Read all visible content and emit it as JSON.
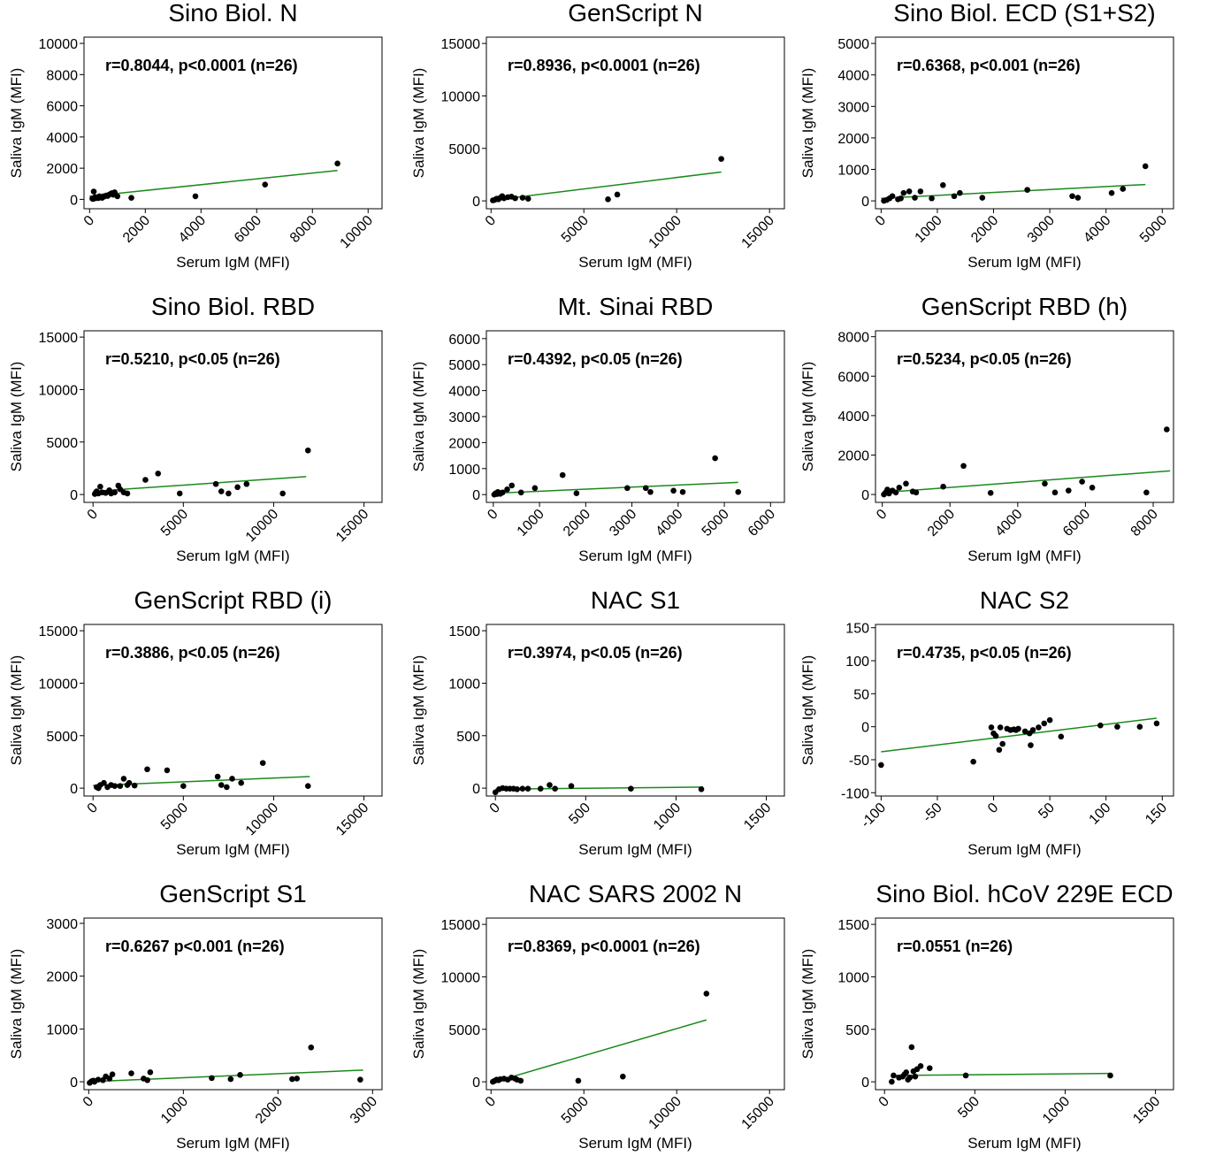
{
  "chart_data": [
    {
      "type": "scatter",
      "title": "Sino Biol. N",
      "annotation": "r=0.8044, p<0.0001 (n=26)",
      "x_label": "Serum IgM (MFI)",
      "y_label": "Saliva IgM (MFI)",
      "xlim": [
        -200,
        10500
      ],
      "xticks": [
        0,
        2000,
        4000,
        6000,
        8000,
        10000
      ],
      "ylim": [
        -600,
        10400
      ],
      "yticks": [
        0,
        2000,
        4000,
        6000,
        8000,
        10000
      ],
      "color": "#000000",
      "x": [
        100,
        150,
        200,
        250,
        300,
        350,
        400,
        450,
        500,
        600,
        700,
        800,
        900,
        1000,
        1500,
        3800,
        6300,
        8900,
        120,
        180,
        220,
        320,
        520,
        650,
        750,
        850
      ],
      "values": [
        50,
        500,
        150,
        100,
        80,
        200,
        150,
        100,
        200,
        250,
        300,
        400,
        450,
        200,
        100,
        200,
        950,
        2300,
        30,
        60,
        120,
        90,
        180,
        220,
        350,
        300
      ],
      "fit": {
        "color": "#1a8a1a",
        "x": [
          0,
          8900
        ],
        "values": [
          200,
          1850
        ]
      }
    },
    {
      "type": "scatter",
      "title": "GenScript N",
      "annotation": "r=0.8936, p<0.0001 (n=26)",
      "x_label": "Serum IgM (MFI)",
      "y_label": "Saliva IgM (MFI)",
      "xlim": [
        -250,
        15800
      ],
      "xticks": [
        0,
        5000,
        10000,
        15000
      ],
      "ylim": [
        -750,
        15600
      ],
      "yticks": [
        0,
        5000,
        10000,
        15000
      ],
      "color": "#000000",
      "x": [
        100,
        200,
        300,
        400,
        500,
        600,
        700,
        900,
        1100,
        1300,
        1700,
        2000,
        6300,
        6800,
        12400
      ],
      "values": [
        50,
        100,
        200,
        150,
        300,
        450,
        250,
        350,
        400,
        250,
        300,
        200,
        150,
        600,
        4000
      ],
      "fit": {
        "color": "#1a8a1a",
        "x": [
          0,
          12400
        ],
        "values": [
          50,
          2750
        ]
      }
    },
    {
      "type": "scatter",
      "title": "Sino Biol. ECD (S1+S2)",
      "annotation": "r=0.6368, p<0.001 (n=26)",
      "x_label": "Serum IgM (MFI)",
      "y_label": "Saliva IgM (MFI)",
      "xlim": [
        -100,
        5200
      ],
      "xticks": [
        0,
        1000,
        2000,
        3000,
        4000,
        5000
      ],
      "ylim": [
        -250,
        5200
      ],
      "yticks": [
        0,
        1000,
        2000,
        3000,
        4000,
        5000
      ],
      "color": "#000000",
      "x": [
        50,
        100,
        150,
        200,
        300,
        350,
        400,
        500,
        600,
        700,
        900,
        1100,
        1300,
        1400,
        1800,
        2600,
        3400,
        3500,
        4100,
        4300,
        4700
      ],
      "values": [
        0,
        30,
        80,
        150,
        50,
        80,
        250,
        300,
        100,
        300,
        80,
        500,
        150,
        250,
        100,
        350,
        150,
        100,
        250,
        380,
        1100
      ],
      "fit": {
        "color": "#1a8a1a",
        "x": [
          0,
          4700
        ],
        "values": [
          80,
          520
        ]
      }
    },
    {
      "type": "scatter",
      "title": "Sino Biol. RBD",
      "annotation": "r=0.5210, p<0.05 (n=26)",
      "x_label": "Serum IgM (MFI)",
      "y_label": "Saliva IgM (MFI)",
      "xlim": [
        -500,
        16000
      ],
      "xticks": [
        0,
        5000,
        10000,
        15000
      ],
      "ylim": [
        -750,
        15600
      ],
      "yticks": [
        0,
        5000,
        10000,
        15000
      ],
      "color": "#000000",
      "x": [
        100,
        200,
        300,
        400,
        500,
        700,
        900,
        1000,
        1200,
        1400,
        1500,
        1700,
        1900,
        2900,
        3600,
        4800,
        6800,
        7100,
        7500,
        8000,
        8500,
        10500,
        11900
      ],
      "values": [
        50,
        300,
        100,
        750,
        200,
        150,
        400,
        100,
        200,
        850,
        500,
        200,
        100,
        1400,
        2000,
        100,
        1000,
        300,
        100,
        700,
        1000,
        100,
        4200
      ],
      "fit": {
        "color": "#1a8a1a",
        "x": [
          0,
          11800
        ],
        "values": [
          300,
          1700
        ]
      }
    },
    {
      "type": "scatter",
      "title": "Mt. Sinai RBD",
      "annotation": "r=0.4392, p<0.05 (n=26)",
      "x_label": "Serum IgM (MFI)",
      "y_label": "Saliva IgM (MFI)",
      "xlim": [
        -150,
        6300
      ],
      "xticks": [
        0,
        1000,
        2000,
        3000,
        4000,
        5000,
        6000
      ],
      "ylim": [
        -300,
        6300
      ],
      "yticks": [
        0,
        1000,
        2000,
        3000,
        4000,
        5000,
        6000
      ],
      "color": "#000000",
      "x": [
        20,
        50,
        80,
        100,
        150,
        200,
        300,
        400,
        600,
        900,
        1500,
        1800,
        2900,
        3300,
        3400,
        3900,
        4100,
        4800,
        5300
      ],
      "values": [
        0,
        50,
        20,
        100,
        30,
        80,
        200,
        350,
        80,
        250,
        750,
        50,
        250,
        250,
        100,
        150,
        100,
        1400,
        100
      ],
      "fit": {
        "color": "#1a8a1a",
        "x": [
          0,
          5300
        ],
        "values": [
          50,
          470
        ]
      }
    },
    {
      "type": "scatter",
      "title": "GenScript RBD (h)",
      "annotation": "r=0.5234, p<0.05 (n=26)",
      "x_label": "Serum IgM (MFI)",
      "y_label": "Saliva IgM (MFI)",
      "xlim": [
        -200,
        8600
      ],
      "xticks": [
        0,
        2000,
        4000,
        6000,
        8000
      ],
      "ylim": [
        -400,
        8300
      ],
      "yticks": [
        0,
        2000,
        4000,
        6000,
        8000
      ],
      "color": "#000000",
      "x": [
        50,
        100,
        150,
        200,
        300,
        400,
        500,
        700,
        900,
        1000,
        1800,
        2400,
        3200,
        4800,
        5100,
        5500,
        5900,
        6200,
        7800,
        8400
      ],
      "values": [
        0,
        100,
        250,
        50,
        200,
        100,
        350,
        550,
        150,
        100,
        400,
        1450,
        80,
        550,
        100,
        200,
        650,
        350,
        100,
        3300
      ],
      "fit": {
        "color": "#1a8a1a",
        "x": [
          0,
          8500
        ],
        "values": [
          100,
          1200
        ]
      }
    },
    {
      "type": "scatter",
      "title": "GenScript RBD (i)",
      "annotation": "r=0.3886, p<0.05 (n=26)",
      "x_label": "Serum IgM (MFI)",
      "y_label": "Saliva IgM (MFI)",
      "xlim": [
        -500,
        16000
      ],
      "xticks": [
        0,
        5000,
        10000,
        15000
      ],
      "ylim": [
        -750,
        15600
      ],
      "yticks": [
        0,
        5000,
        10000,
        15000
      ],
      "color": "#000000",
      "x": [
        200,
        300,
        400,
        600,
        800,
        1000,
        1200,
        1500,
        1700,
        1900,
        2000,
        2300,
        3000,
        4100,
        5000,
        6900,
        7100,
        7400,
        7700,
        8200,
        9400,
        11900
      ],
      "values": [
        100,
        0,
        300,
        500,
        100,
        300,
        200,
        200,
        900,
        300,
        500,
        250,
        1800,
        1700,
        200,
        1100,
        300,
        100,
        900,
        500,
        2400,
        200
      ],
      "fit": {
        "color": "#1a8a1a",
        "x": [
          0,
          12000
        ],
        "values": [
          250,
          1100
        ]
      }
    },
    {
      "type": "scatter",
      "title": "NAC S1",
      "annotation": "r=0.3974, p<0.05 (n=26)",
      "x_label": "Serum IgM (MFI)",
      "y_label": "Saliva IgM (MFI)",
      "xlim": [
        -50,
        1600
      ],
      "xticks": [
        0,
        500,
        1000,
        1500
      ],
      "ylim": [
        -75,
        1560
      ],
      "yticks": [
        0,
        500,
        1000,
        1500
      ],
      "color": "#000000",
      "x": [
        0,
        20,
        40,
        60,
        80,
        100,
        120,
        150,
        180,
        250,
        300,
        330,
        420,
        750,
        1140
      ],
      "values": [
        -40,
        -10,
        0,
        -5,
        -5,
        -5,
        -10,
        -5,
        -5,
        -5,
        30,
        -5,
        20,
        -5,
        -10
      ],
      "fit": {
        "color": "#1a8a1a",
        "x": [
          0,
          1150
        ],
        "values": [
          -10,
          10
        ]
      }
    },
    {
      "type": "scatter",
      "title": "NAC S2",
      "annotation": "r=0.4735, p<0.05 (n=26)",
      "x_label": "Serum IgM (MFI)",
      "y_label": "Saliva IgM (MFI)",
      "xlim": [
        -105,
        160
      ],
      "xticks": [
        -100,
        -50,
        0,
        50,
        100,
        150
      ],
      "ylim": [
        -105,
        155
      ],
      "yticks": [
        -100,
        -50,
        0,
        50,
        100,
        150
      ],
      "color": "#000000",
      "x": [
        -100,
        -18,
        -2,
        0,
        2,
        5,
        6,
        8,
        12,
        15,
        18,
        20,
        22,
        28,
        32,
        33,
        35,
        40,
        45,
        50,
        60,
        95,
        110,
        130,
        145
      ],
      "values": [
        -58,
        -53,
        -1,
        -10,
        -14,
        -35,
        -1,
        -26,
        -3,
        -5,
        -4,
        -5,
        -3,
        -7,
        -10,
        -28,
        -5,
        -1,
        5,
        10,
        -15,
        2,
        0,
        0,
        5
      ],
      "fit": {
        "color": "#1a8a1a",
        "x": [
          -100,
          145
        ],
        "values": [
          -38,
          13
        ]
      }
    },
    {
      "type": "scatter",
      "title": "GenScript S1",
      "annotation": "r=0.6267 p<0.001 (n=26)",
      "x_label": "Serum IgM (MFI)",
      "y_label": "Saliva IgM (MFI)",
      "xlim": [
        -50,
        3100
      ],
      "xticks": [
        0,
        1000,
        2000,
        3000
      ],
      "ylim": [
        -150,
        3100
      ],
      "yticks": [
        0,
        1000,
        2000,
        3000
      ],
      "color": "#000000",
      "x": [
        10,
        30,
        50,
        60,
        100,
        150,
        180,
        220,
        250,
        450,
        580,
        620,
        650,
        1300,
        1500,
        1600,
        2150,
        2200,
        2350,
        2870
      ],
      "values": [
        -20,
        10,
        20,
        0,
        40,
        30,
        100,
        60,
        140,
        160,
        60,
        30,
        180,
        70,
        50,
        130,
        50,
        60,
        650,
        40
      ],
      "fit": {
        "color": "#1a8a1a",
        "x": [
          0,
          2900
        ],
        "values": [
          0,
          220
        ]
      }
    },
    {
      "type": "scatter",
      "title": "NAC SARS 2002 N",
      "annotation": "r=0.8369, p<0.0001 (n=26)",
      "x_label": "Serum IgM (MFI)",
      "y_label": "Saliva IgM (MFI)",
      "xlim": [
        -250,
        15800
      ],
      "xticks": [
        0,
        5000,
        10000,
        15000
      ],
      "ylim": [
        -750,
        15600
      ],
      "yticks": [
        0,
        5000,
        10000,
        15000
      ],
      "color": "#000000",
      "x": [
        100,
        200,
        300,
        400,
        500,
        700,
        900,
        1100,
        1300,
        1400,
        1600,
        4700,
        7100,
        11600
      ],
      "values": [
        0,
        100,
        200,
        150,
        250,
        300,
        200,
        400,
        300,
        200,
        100,
        100,
        500,
        8400
      ],
      "fit": {
        "color": "#1a8a1a",
        "x": [
          0,
          11600
        ],
        "values": [
          -100,
          5900
        ]
      }
    },
    {
      "type": "scatter",
      "title": "Sino Biol. hCoV 229E ECD",
      "annotation": "r=0.0551 (n=26)",
      "x_label": "Serum IgM (MFI)",
      "y_label": "Saliva IgM (MFI)",
      "xlim": [
        -50,
        1600
      ],
      "xticks": [
        0,
        500,
        1000,
        1500
      ],
      "ylim": [
        -75,
        1560
      ],
      "yticks": [
        0,
        500,
        1000,
        1500
      ],
      "color": "#000000",
      "x": [
        40,
        50,
        80,
        100,
        110,
        120,
        130,
        140,
        150,
        160,
        170,
        180,
        200,
        250,
        450,
        1250
      ],
      "values": [
        0,
        60,
        40,
        50,
        70,
        90,
        20,
        40,
        330,
        100,
        50,
        120,
        150,
        130,
        60,
        60
      ],
      "fit": {
        "color": "#1a8a1a",
        "x": [
          50,
          1250
        ],
        "values": [
          60,
          80
        ]
      }
    }
  ]
}
